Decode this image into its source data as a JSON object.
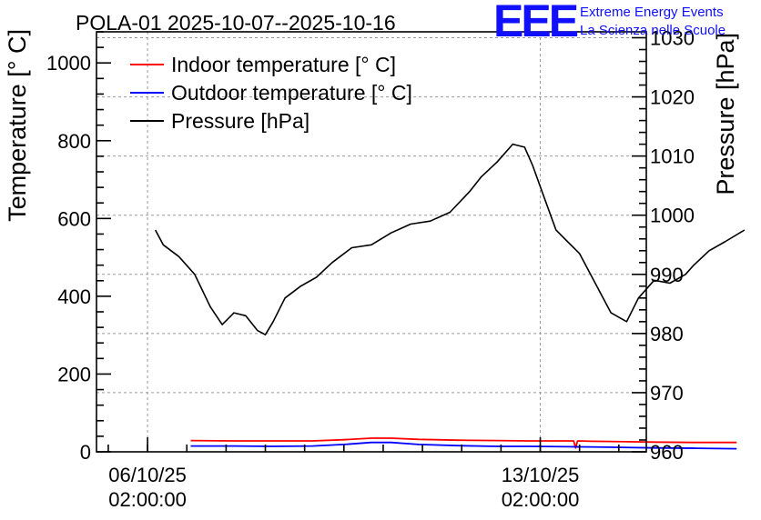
{
  "chart_data": {
    "type": "line",
    "title": "POLA-01 2025-10-07--2025-10-16",
    "ylabel_left": "Temperature [° C]",
    "ylabel_right": "Pressure [hPa]",
    "xlabel": "",
    "grid": true,
    "legend_position": "top-left",
    "x_domain_days": [
      0,
      14
    ],
    "ylim_left": [
      0,
      1080
    ],
    "ylim_right": [
      960,
      1031
    ],
    "yticks_left": [
      0,
      200,
      400,
      600,
      800,
      1000
    ],
    "yticks_left_labels": [
      "0",
      "200",
      "400",
      "600",
      "800",
      "1000"
    ],
    "yticks_right": [
      960,
      970,
      980,
      990,
      1000,
      1010,
      1020,
      1030
    ],
    "yticks_right_labels": [
      "960",
      "970",
      "980",
      "990",
      "1000",
      "1010",
      "1020",
      "1030"
    ],
    "xticks": [
      {
        "day": 1.3,
        "date": "06/10/25",
        "time": "02:00:00"
      },
      {
        "day": 11.3,
        "date": "13/10/25",
        "time": "02:00:00"
      }
    ],
    "series": [
      {
        "name": "Indoor temperature [° C]",
        "color": "#ff0000",
        "axis": "left",
        "x": [
          2.4,
          3.5,
          4.5,
          5.5,
          6.3,
          7.0,
          7.5,
          8.2,
          9.2,
          10.2,
          11.0,
          12.0,
          12.15,
          12.2,
          12.25,
          12.6,
          13.5,
          14.2,
          15.3,
          16.3
        ],
        "y": [
          29,
          28,
          28,
          28,
          31,
          35,
          35,
          32,
          30,
          29,
          28,
          28,
          28,
          10,
          28,
          27,
          26,
          25,
          24,
          24
        ]
      },
      {
        "name": "Outdoor temperature [° C]",
        "color": "#0000ff",
        "axis": "left",
        "x": [
          2.4,
          3.5,
          4.5,
          5.5,
          6.3,
          7.0,
          7.5,
          8.2,
          9.2,
          10.2,
          11.0,
          12.0,
          13.0,
          14.2,
          15.3,
          16.3
        ],
        "y": [
          15,
          15,
          14,
          15,
          19,
          24,
          24,
          19,
          16,
          14,
          14,
          13,
          12,
          10,
          9,
          8
        ]
      },
      {
        "name": "Pressure [hPa]",
        "color": "#000000",
        "axis": "right",
        "x": [
          1.5,
          1.7,
          2.1,
          2.5,
          2.9,
          3.2,
          3.5,
          3.8,
          4.1,
          4.3,
          4.5,
          4.8,
          5.2,
          5.6,
          6.0,
          6.5,
          7.0,
          7.5,
          8.0,
          8.5,
          9.0,
          9.5,
          9.8,
          10.2,
          10.6,
          10.9,
          11.1,
          11.4,
          11.7,
          12.0,
          12.3,
          12.7,
          13.1,
          13.5,
          13.8,
          14.2,
          14.6,
          15.0,
          15.2,
          15.6,
          16.0,
          16.5
        ],
        "y": [
          997.5,
          995,
          993,
          990,
          984.5,
          981.5,
          983.5,
          983,
          980.5,
          979.8,
          982,
          986,
          988,
          989.5,
          992,
          994.5,
          995,
          997,
          998.5,
          999,
          1000.5,
          1004,
          1006.5,
          1009,
          1012,
          1011.5,
          1008.5,
          1003,
          997.5,
          995.5,
          993.5,
          988.5,
          983.5,
          982,
          986,
          989,
          988.5,
          990,
          991.5,
          994,
          995.5,
          997.5
        ]
      }
    ]
  },
  "logo": {
    "mark": "EEE",
    "line1": "Extreme Energy Events",
    "line2": "La Scienza nelle Scuole"
  }
}
